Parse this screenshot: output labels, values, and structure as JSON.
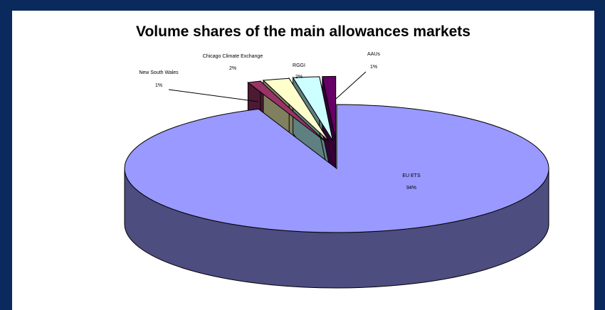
{
  "chart_data": {
    "type": "pie",
    "title": "Volume shares of the main allowances markets",
    "categories": [
      "EU ETS",
      "New South Wales",
      "Chicago Climate Exchange",
      "RGGI",
      "AAUs"
    ],
    "values": [
      94,
      1,
      2,
      2,
      1
    ],
    "labels": [
      "94%",
      "1%",
      "2%",
      "2%",
      "1%"
    ],
    "label_text": {
      "eu_ets": "EU ETS",
      "eu_pct": "94%",
      "nsw": "New South Wales",
      "nsw_pct": "1%",
      "ccx": "Chicago Climate Exchange",
      "ccx_pct": "2%",
      "rggi": "RGGI",
      "rggi_pct": "2%",
      "aau": "AAUs",
      "aau_pct": "1%"
    },
    "colors": [
      "#9999ff",
      "#993366",
      "#ffffcc",
      "#ccffff",
      "#660066"
    ],
    "side_colors": [
      "#4d4d80",
      "#4d1a33",
      "#80805f",
      "#5f8080",
      "#330033"
    ],
    "3d": true,
    "exploded": [
      "New South Wales",
      "Chicago Climate Exchange",
      "RGGI",
      "AAUs"
    ]
  }
}
